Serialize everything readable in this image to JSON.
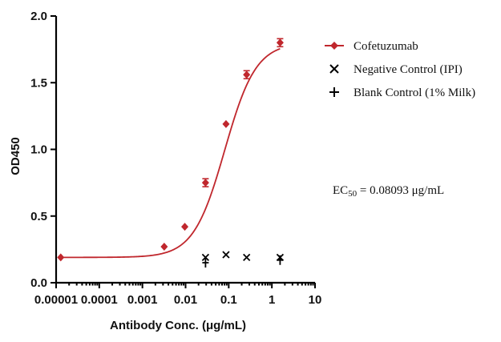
{
  "chart_data": {
    "type": "line",
    "xscale": "log",
    "xlabel": "Antibody Conc. (μg/mL)",
    "ylabel": "OD450",
    "xlim": [
      1e-05,
      10
    ],
    "ylim": [
      0.0,
      2.0
    ],
    "x_ticks": [
      {
        "value": 1e-05,
        "label": "0.00001"
      },
      {
        "value": 0.0001,
        "label": "0.0001"
      },
      {
        "value": 0.001,
        "label": "0.001"
      },
      {
        "value": 0.01,
        "label": "0.01"
      },
      {
        "value": 0.1,
        "label": "0.1"
      },
      {
        "value": 1,
        "label": "1"
      },
      {
        "value": 10,
        "label": "10"
      }
    ],
    "y_ticks": [
      {
        "value": 0.0,
        "label": "0.0"
      },
      {
        "value": 0.5,
        "label": "0.5"
      },
      {
        "value": 1.0,
        "label": "1.0"
      },
      {
        "value": 1.5,
        "label": "1.5"
      },
      {
        "value": 2.0,
        "label": "2.0"
      }
    ],
    "series": [
      {
        "name": "Cofetuzumab",
        "marker": "diamond",
        "color": "#c0272d",
        "fit": {
          "model": "4PL",
          "bottom": 0.19,
          "top": 1.8,
          "ec50": 0.08093,
          "hill": 1.2
        },
        "points": [
          {
            "x": 1.28e-05,
            "y": 0.19,
            "err": 0
          },
          {
            "x": 0.0032,
            "y": 0.27,
            "err": 0
          },
          {
            "x": 0.0096,
            "y": 0.42,
            "err": 0
          },
          {
            "x": 0.029,
            "y": 0.75,
            "err": 0.03
          },
          {
            "x": 0.0865,
            "y": 1.19,
            "err": 0
          },
          {
            "x": 0.26,
            "y": 1.56,
            "err": 0.03
          },
          {
            "x": 1.55,
            "y": 1.8,
            "err": 0.03
          }
        ]
      },
      {
        "name": "Negative Control (IPI)",
        "marker": "x",
        "color": "#000000",
        "points": [
          {
            "x": 0.029,
            "y": 0.19
          },
          {
            "x": 0.0865,
            "y": 0.21
          },
          {
            "x": 0.26,
            "y": 0.19
          },
          {
            "x": 1.55,
            "y": 0.19
          }
        ]
      },
      {
        "name": "Blank Control (1% Milk)",
        "marker": "plus",
        "color": "#000000",
        "points": [
          {
            "x": 0.029,
            "y": 0.15
          },
          {
            "x": 1.55,
            "y": 0.17
          }
        ]
      }
    ],
    "annotation": {
      "prefix": "EC",
      "sub": "50",
      "text": " = 0.08093 μg/mL"
    },
    "legend_position": "top-right"
  }
}
